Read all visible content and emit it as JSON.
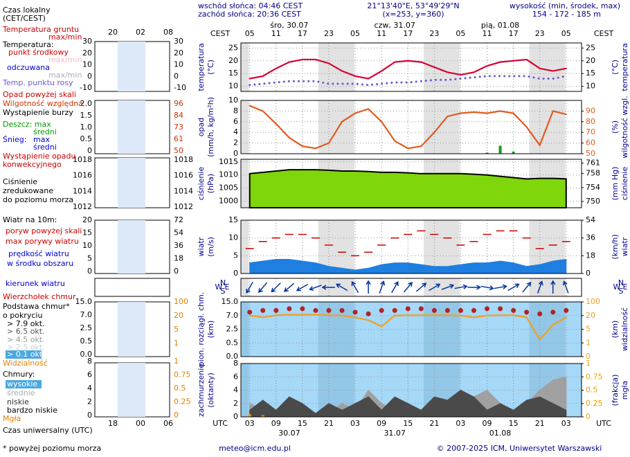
{
  "header": {
    "sunrise": "wschód słońca: 04:46 CEST",
    "sunset": "zachód słońca: 20:36 CEST",
    "coords": "21°13'40\"E, 53°49'29\"N",
    "grid_point": "(x=253, y=360)",
    "elevation_title": "wysokość (min, środek, max)",
    "elevation": "154 - 172 - 185 m"
  },
  "time_axis": {
    "xlim": [
      1,
      78.5
    ],
    "top_unit": "CEST",
    "bottom_unit": "UTC",
    "cest_ticks": [
      {
        "value": 3,
        "label": "05"
      },
      {
        "value": 9,
        "label": "11"
      },
      {
        "value": 15,
        "label": "17"
      },
      {
        "value": 21,
        "label": "23"
      },
      {
        "value": 27,
        "label": "05"
      },
      {
        "value": 33,
        "label": "11"
      },
      {
        "value": 39,
        "label": "17"
      },
      {
        "value": 45,
        "label": "23"
      },
      {
        "value": 51,
        "label": "05"
      },
      {
        "value": 57,
        "label": "11"
      },
      {
        "value": 63,
        "label": "17"
      },
      {
        "value": 69,
        "label": "23"
      },
      {
        "value": 75,
        "label": "05"
      }
    ],
    "utc_ticks": [
      {
        "value": 3,
        "label": "03"
      },
      {
        "value": 9,
        "label": "09"
      },
      {
        "value": 15,
        "label": "15"
      },
      {
        "value": 21,
        "label": "21"
      },
      {
        "value": 27,
        "label": "03"
      },
      {
        "value": 33,
        "label": "09"
      },
      {
        "value": 39,
        "label": "15"
      },
      {
        "value": 45,
        "label": "21"
      },
      {
        "value": 51,
        "label": "03"
      },
      {
        "value": 57,
        "label": "09"
      },
      {
        "value": 63,
        "label": "15"
      },
      {
        "value": 69,
        "label": "21"
      },
      {
        "value": 75,
        "label": "03"
      }
    ],
    "days": [
      {
        "value": 12,
        "label": "śro, 30.07"
      },
      {
        "value": 36,
        "label": "czw, 31.07"
      },
      {
        "value": 60,
        "label": "pią, 01.08"
      }
    ],
    "dates": [
      {
        "value": 12,
        "label": "30.07"
      },
      {
        "value": 36,
        "label": "31.07"
      },
      {
        "value": 60,
        "label": "01.08"
      }
    ]
  },
  "legend": {
    "local_time": "Czas lokalny",
    "local_zone": "(CET/CEST)",
    "ground_temp": "Temperatura gruntu",
    "ground_maxmin": "max/min",
    "temp": "Temperatura:",
    "temp_maxmin": "max/min",
    "apparent": "odczuwana",
    "apparent_maxmin": "max/min",
    "precip_over": "Opad powyżej skali",
    "storm": "Wystąpienie burzy",
    "rain_max": "Deszcz: max",
    "snow": "Śnieg:",
    "snow_max": "max",
    "snow_mean": "średni",
    "convective1": "Wystąpienie opadu",
    "convective2": "konwekcyjnego",
    "pressure2": "zredukowane",
    "pressure3": "do poziomu morza",
    "wind": "Wiatr na 10m:",
    "gust_over": "poryw powyżej skali",
    "wind2": "w środku obszaru",
    "cloud_top": "Wierzchołek chmur",
    "cloud_cover": "o pokryciu",
    "okt79": "> 7.9 okt.",
    "okt65": "> 6.5 okt.",
    "okt45": "> 4.5 okt.",
    "okt25": "> 2.5 okt.",
    "okt01": "> 0.1 okt.",
    "clouds": "Chmury:",
    "high": "wysokie",
    "very_low": "bardzo niskie",
    "utc": "Czas uniwersalny (UTC)"
  },
  "legend_panels": [
    {
      "left": [
        "30",
        "20",
        "10",
        "0",
        "-10"
      ],
      "right": [
        "30",
        "20",
        "10",
        "0",
        "-10"
      ]
    },
    {
      "left": [
        "2.0",
        "1.5",
        "1.0",
        "0.5",
        "0"
      ],
      "right": [
        "96",
        "84",
        "73",
        "61",
        "50"
      ]
    },
    {
      "left": [
        "1018",
        "1016",
        "1014",
        "1012"
      ],
      "right": [
        "1018",
        "1016",
        "1014",
        "1012"
      ]
    },
    {
      "left": [
        "20",
        "15",
        "10",
        "5",
        "0"
      ],
      "right": [
        "72",
        "54",
        "36",
        "18",
        "0"
      ]
    },
    {
      "left": [
        "15.0",
        "7.0",
        "2.5",
        "0.5",
        "0.0"
      ],
      "right": [
        "100",
        "20",
        "5",
        "1"
      ]
    },
    {
      "left": [
        "8",
        "6",
        "4",
        "2",
        "0"
      ],
      "right": [
        "1",
        "0.75",
        "0.5",
        "0.25",
        "0"
      ]
    }
  ],
  "legend_time": {
    "top": [
      "20",
      "02",
      "08"
    ],
    "bottom": [
      "18",
      "00",
      "06"
    ]
  },
  "chart_data": [
    {
      "type": "line",
      "ylabel": "temperatura",
      "yunit": "(°C)",
      "y2label": "temperatura",
      "y2unit": "(°C)",
      "ylim": [
        8,
        27
      ],
      "yticks": [
        10,
        15,
        20,
        25
      ],
      "y2lim": [
        8,
        27
      ],
      "y2ticks": [
        10,
        15,
        20,
        25
      ],
      "x": [
        3,
        6,
        9,
        12,
        15,
        18,
        21,
        24,
        27,
        30,
        33,
        36,
        39,
        42,
        45,
        48,
        51,
        54,
        57,
        60,
        63,
        66,
        69,
        72,
        75
      ],
      "series": [
        {
          "name": "punkt środkowy",
          "color": "#d40030",
          "mark": "line",
          "values": [
            13,
            14,
            17,
            19.5,
            20.5,
            20.5,
            19,
            16,
            14,
            13,
            16,
            19.5,
            20,
            19.5,
            17.5,
            15.5,
            14.5,
            15.5,
            18,
            19.5,
            20,
            20.5,
            17,
            16,
            17
          ]
        },
        {
          "name": "Temp. punktu rosy",
          "color": "#6a5acd",
          "mark": "line",
          "style": "dotted",
          "values": [
            10.5,
            11,
            11.5,
            12,
            12,
            12,
            11,
            11,
            11,
            10.5,
            11,
            11.5,
            11.5,
            12,
            12.5,
            12.5,
            13,
            13.5,
            14,
            14,
            14,
            14,
            13,
            13,
            14
          ]
        }
      ]
    },
    {
      "type": "bar",
      "ylabel": "opad",
      "yunit": "(mm/h, kg/m²h)",
      "y2label": "wilgotność wzgl.",
      "y2unit": "(%)",
      "ylim": [
        0,
        10
      ],
      "yticks": [
        0,
        2,
        4,
        6,
        8,
        10
      ],
      "y2lim": [
        50,
        100
      ],
      "y2ticks": [
        50,
        60,
        70,
        80,
        90
      ],
      "x": [
        3,
        6,
        9,
        12,
        15,
        18,
        21,
        24,
        27,
        30,
        33,
        36,
        39,
        42,
        45,
        48,
        51,
        54,
        57,
        60,
        63,
        66,
        69,
        72,
        75
      ],
      "series": [
        {
          "name": "średni",
          "color": "#1a9a1a",
          "mark": "bar",
          "values": [
            0,
            0,
            0,
            0,
            0,
            0,
            0,
            0,
            0,
            0,
            0,
            0,
            0,
            0,
            0,
            0,
            0,
            0,
            0.2,
            1.5,
            0.4,
            0,
            0,
            0,
            0
          ]
        },
        {
          "name": "Wilgotność względna",
          "color": "#e05a1c",
          "mark": "line",
          "axis": "y2",
          "values": [
            95,
            90,
            78,
            65,
            57,
            55,
            60,
            80,
            88,
            92,
            80,
            62,
            55,
            57,
            70,
            85,
            88,
            89,
            88,
            90,
            88,
            75,
            58,
            90,
            87
          ]
        }
      ]
    },
    {
      "type": "area",
      "ylabel": "ciśnienie",
      "yunit": "(hPa)",
      "y2label": "ciśnienie",
      "y2unit": "(mm Hg)",
      "ylim": [
        997.5,
        1016
      ],
      "yticks": [
        1000,
        1005,
        1010,
        1015
      ],
      "y2lim": [
        748.2,
        762.1
      ],
      "y2ticks": [
        750,
        754,
        758,
        761
      ],
      "x": [
        3,
        6,
        9,
        12,
        15,
        18,
        21,
        24,
        27,
        30,
        33,
        36,
        39,
        42,
        45,
        48,
        51,
        54,
        57,
        60,
        63,
        66,
        69,
        72,
        75
      ],
      "series": [
        {
          "name": "Ciśnienie",
          "color": "#7fd60a",
          "mark": "area",
          "values": [
            1010.5,
            1011,
            1011.5,
            1012,
            1012,
            1012,
            1011.8,
            1011.5,
            1011.5,
            1011.3,
            1011,
            1011,
            1010.8,
            1010.5,
            1010.5,
            1010.5,
            1010.5,
            1010.3,
            1010,
            1009.5,
            1009,
            1008.5,
            1008.7,
            1008.7,
            1008.5
          ]
        }
      ]
    },
    {
      "type": "area",
      "ylabel": "wiatr",
      "yunit": "(m/s)",
      "y2label": "wiatr",
      "y2unit": "(km/h)",
      "ylim": [
        0,
        15
      ],
      "yticks": [
        0,
        5,
        10,
        15
      ],
      "y2lim": [
        0,
        54
      ],
      "y2ticks": [
        0,
        18,
        36,
        54
      ],
      "x": [
        3,
        6,
        9,
        12,
        15,
        18,
        21,
        24,
        27,
        30,
        33,
        36,
        39,
        42,
        45,
        48,
        51,
        54,
        57,
        60,
        63,
        66,
        69,
        72,
        75
      ],
      "series": [
        {
          "name": "prędkość wiatru",
          "color": "#1e7fe0",
          "mark": "area",
          "values": [
            3,
            3.5,
            4,
            4,
            3.5,
            3,
            2,
            1.5,
            1,
            1.5,
            2.5,
            3,
            3,
            2.5,
            2,
            2,
            2.5,
            3,
            3,
            3.5,
            3,
            2,
            2.5,
            3.5,
            4
          ]
        },
        {
          "name": "max porywy wiatru",
          "color": "#cc0000",
          "mark": "dashes",
          "values": [
            7,
            9,
            10,
            11,
            11,
            10,
            8,
            6,
            5,
            6,
            8,
            10,
            11,
            12,
            11,
            10,
            8,
            9,
            11,
            12,
            12,
            10,
            7,
            8,
            9
          ]
        }
      ]
    },
    {
      "type": "arrows",
      "name": "kierunek wiatru",
      "color": "#00339a",
      "compass": [
        "N",
        "W",
        "E",
        "S"
      ],
      "x": [
        3,
        6,
        9,
        12,
        15,
        18,
        21,
        24,
        27,
        30,
        33,
        36,
        39,
        42,
        45,
        48,
        51,
        54,
        57,
        60,
        63,
        66,
        69,
        72,
        75
      ],
      "values": [
        30,
        40,
        45,
        50,
        60,
        70,
        90,
        120,
        150,
        180,
        200,
        210,
        220,
        230,
        240,
        250,
        260,
        270,
        280,
        260,
        240,
        220,
        200,
        180,
        160
      ]
    },
    {
      "type": "scatter",
      "ylabel": "pion. rozciągł. chm.",
      "yunit": "(km)",
      "y2label": "widzialność",
      "y2unit": "(km)",
      "ylim": [
        0,
        15
      ],
      "yscale": "piecewise",
      "yticks": [
        {
          "value": 0,
          "label": "0.0"
        },
        0.5,
        2.5,
        {
          "value": 7,
          "label": "7.0"
        },
        {
          "value": 15,
          "label": "15.0"
        }
      ],
      "y2lim": [
        0,
        100
      ],
      "y2scale": "piecewise",
      "y2ticks": [
        0,
        1,
        5,
        20,
        100
      ],
      "x": [
        3,
        6,
        9,
        12,
        15,
        18,
        21,
        24,
        27,
        30,
        33,
        36,
        39,
        42,
        45,
        48,
        51,
        54,
        57,
        60,
        63,
        66,
        69,
        72,
        75
      ],
      "series": [
        {
          "name": "Podstawa chmur*",
          "color": "#b22222",
          "mark": "dots",
          "values": [
            9,
            10,
            10,
            11,
            11,
            10,
            10,
            10,
            9,
            8,
            10,
            10,
            11,
            11,
            10,
            10,
            10,
            10,
            11,
            11,
            10,
            9,
            8,
            9,
            10
          ]
        },
        {
          "name": "Widzialność",
          "color": "#f0a020",
          "mark": "line",
          "axis": "y2",
          "values": [
            20,
            18,
            22,
            25,
            25,
            25,
            22,
            20,
            18,
            15,
            8,
            20,
            22,
            22,
            22,
            22,
            20,
            18,
            20,
            22,
            22,
            18,
            2,
            10,
            18
          ]
        }
      ]
    },
    {
      "type": "area",
      "ylabel": "zachmurzenie",
      "yunit": "(oktanty)",
      "y2label": "mgła",
      "y2unit": "(frakcja)",
      "ylim": [
        0,
        8
      ],
      "yticks": [
        0,
        2,
        4,
        6,
        8
      ],
      "y2lim": [
        0,
        1
      ],
      "y2ticks": [
        0,
        0.25,
        0.5,
        0.75,
        1
      ],
      "x": [
        3,
        6,
        9,
        12,
        15,
        18,
        21,
        24,
        27,
        30,
        33,
        36,
        39,
        42,
        45,
        48,
        51,
        54,
        57,
        60,
        63,
        66,
        69,
        72,
        75
      ],
      "series": [
        {
          "name": "średnie",
          "color": "#a0a0a0",
          "mark": "area",
          "values": [
            2,
            1,
            0.5,
            0.5,
            0,
            0,
            0.5,
            2,
            1,
            4,
            2,
            1,
            0,
            0,
            1,
            0.5,
            2,
            3,
            4,
            2,
            1,
            2,
            4,
            5.5,
            6
          ]
        },
        {
          "name": "niskie",
          "color": "#4a4a4a",
          "mark": "area",
          "values": [
            1,
            2.5,
            1,
            3,
            2,
            0.5,
            2,
            1,
            2,
            3,
            1,
            3,
            2,
            1,
            3,
            2.5,
            4,
            3,
            1,
            2,
            1,
            2.5,
            3,
            2,
            1
          ]
        },
        {
          "name": "Mgła",
          "color": "#f0a000",
          "mark": "bar",
          "axis": "y2",
          "values": [
            0.05,
            0.03,
            0,
            0,
            0,
            0,
            0,
            0,
            0,
            0,
            0,
            0,
            0,
            0,
            0,
            0,
            0,
            0,
            0,
            0,
            0,
            0,
            0,
            0,
            0
          ]
        }
      ]
    }
  ],
  "footer": {
    "note": "* powyżej poziomu morza",
    "email": "meteo@icm.edu.pl",
    "copyright": "© 2007-2025 ICM, Uniwersytet Warszawski"
  }
}
